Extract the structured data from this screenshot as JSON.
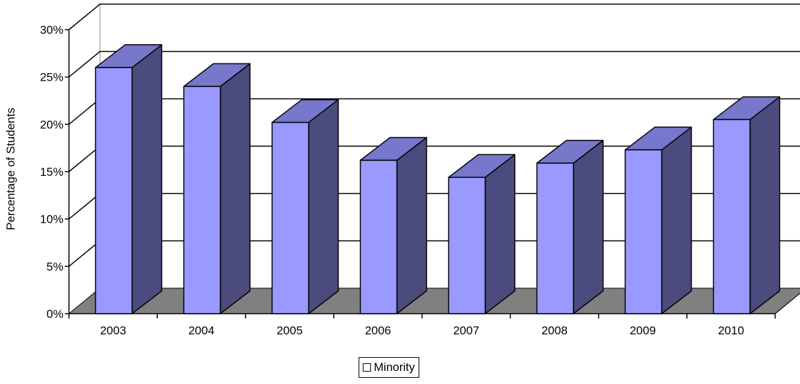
{
  "chart_data": {
    "type": "bar",
    "categories": [
      "2003",
      "2004",
      "2005",
      "2006",
      "2007",
      "2008",
      "2009",
      "2010"
    ],
    "series": [
      {
        "name": "Minority",
        "values": [
          26.0,
          24.0,
          20.2,
          16.2,
          14.4,
          15.9,
          17.3,
          20.5
        ]
      }
    ],
    "title": "",
    "xlabel": "",
    "ylabel": "Percentage of Students",
    "ylim": [
      0,
      30
    ],
    "yticks": [
      "0%",
      "5%",
      "10%",
      "15%",
      "20%",
      "25%",
      "30%"
    ],
    "grid": true,
    "legend_position": "bottom",
    "three_d": true,
    "colors": {
      "bar_front": "#9999ff",
      "bar_side": "#4b4b7d",
      "bar_top": "#7777cc",
      "floor": "#808080",
      "walls": "#ffffff",
      "edges": "#000000"
    }
  }
}
